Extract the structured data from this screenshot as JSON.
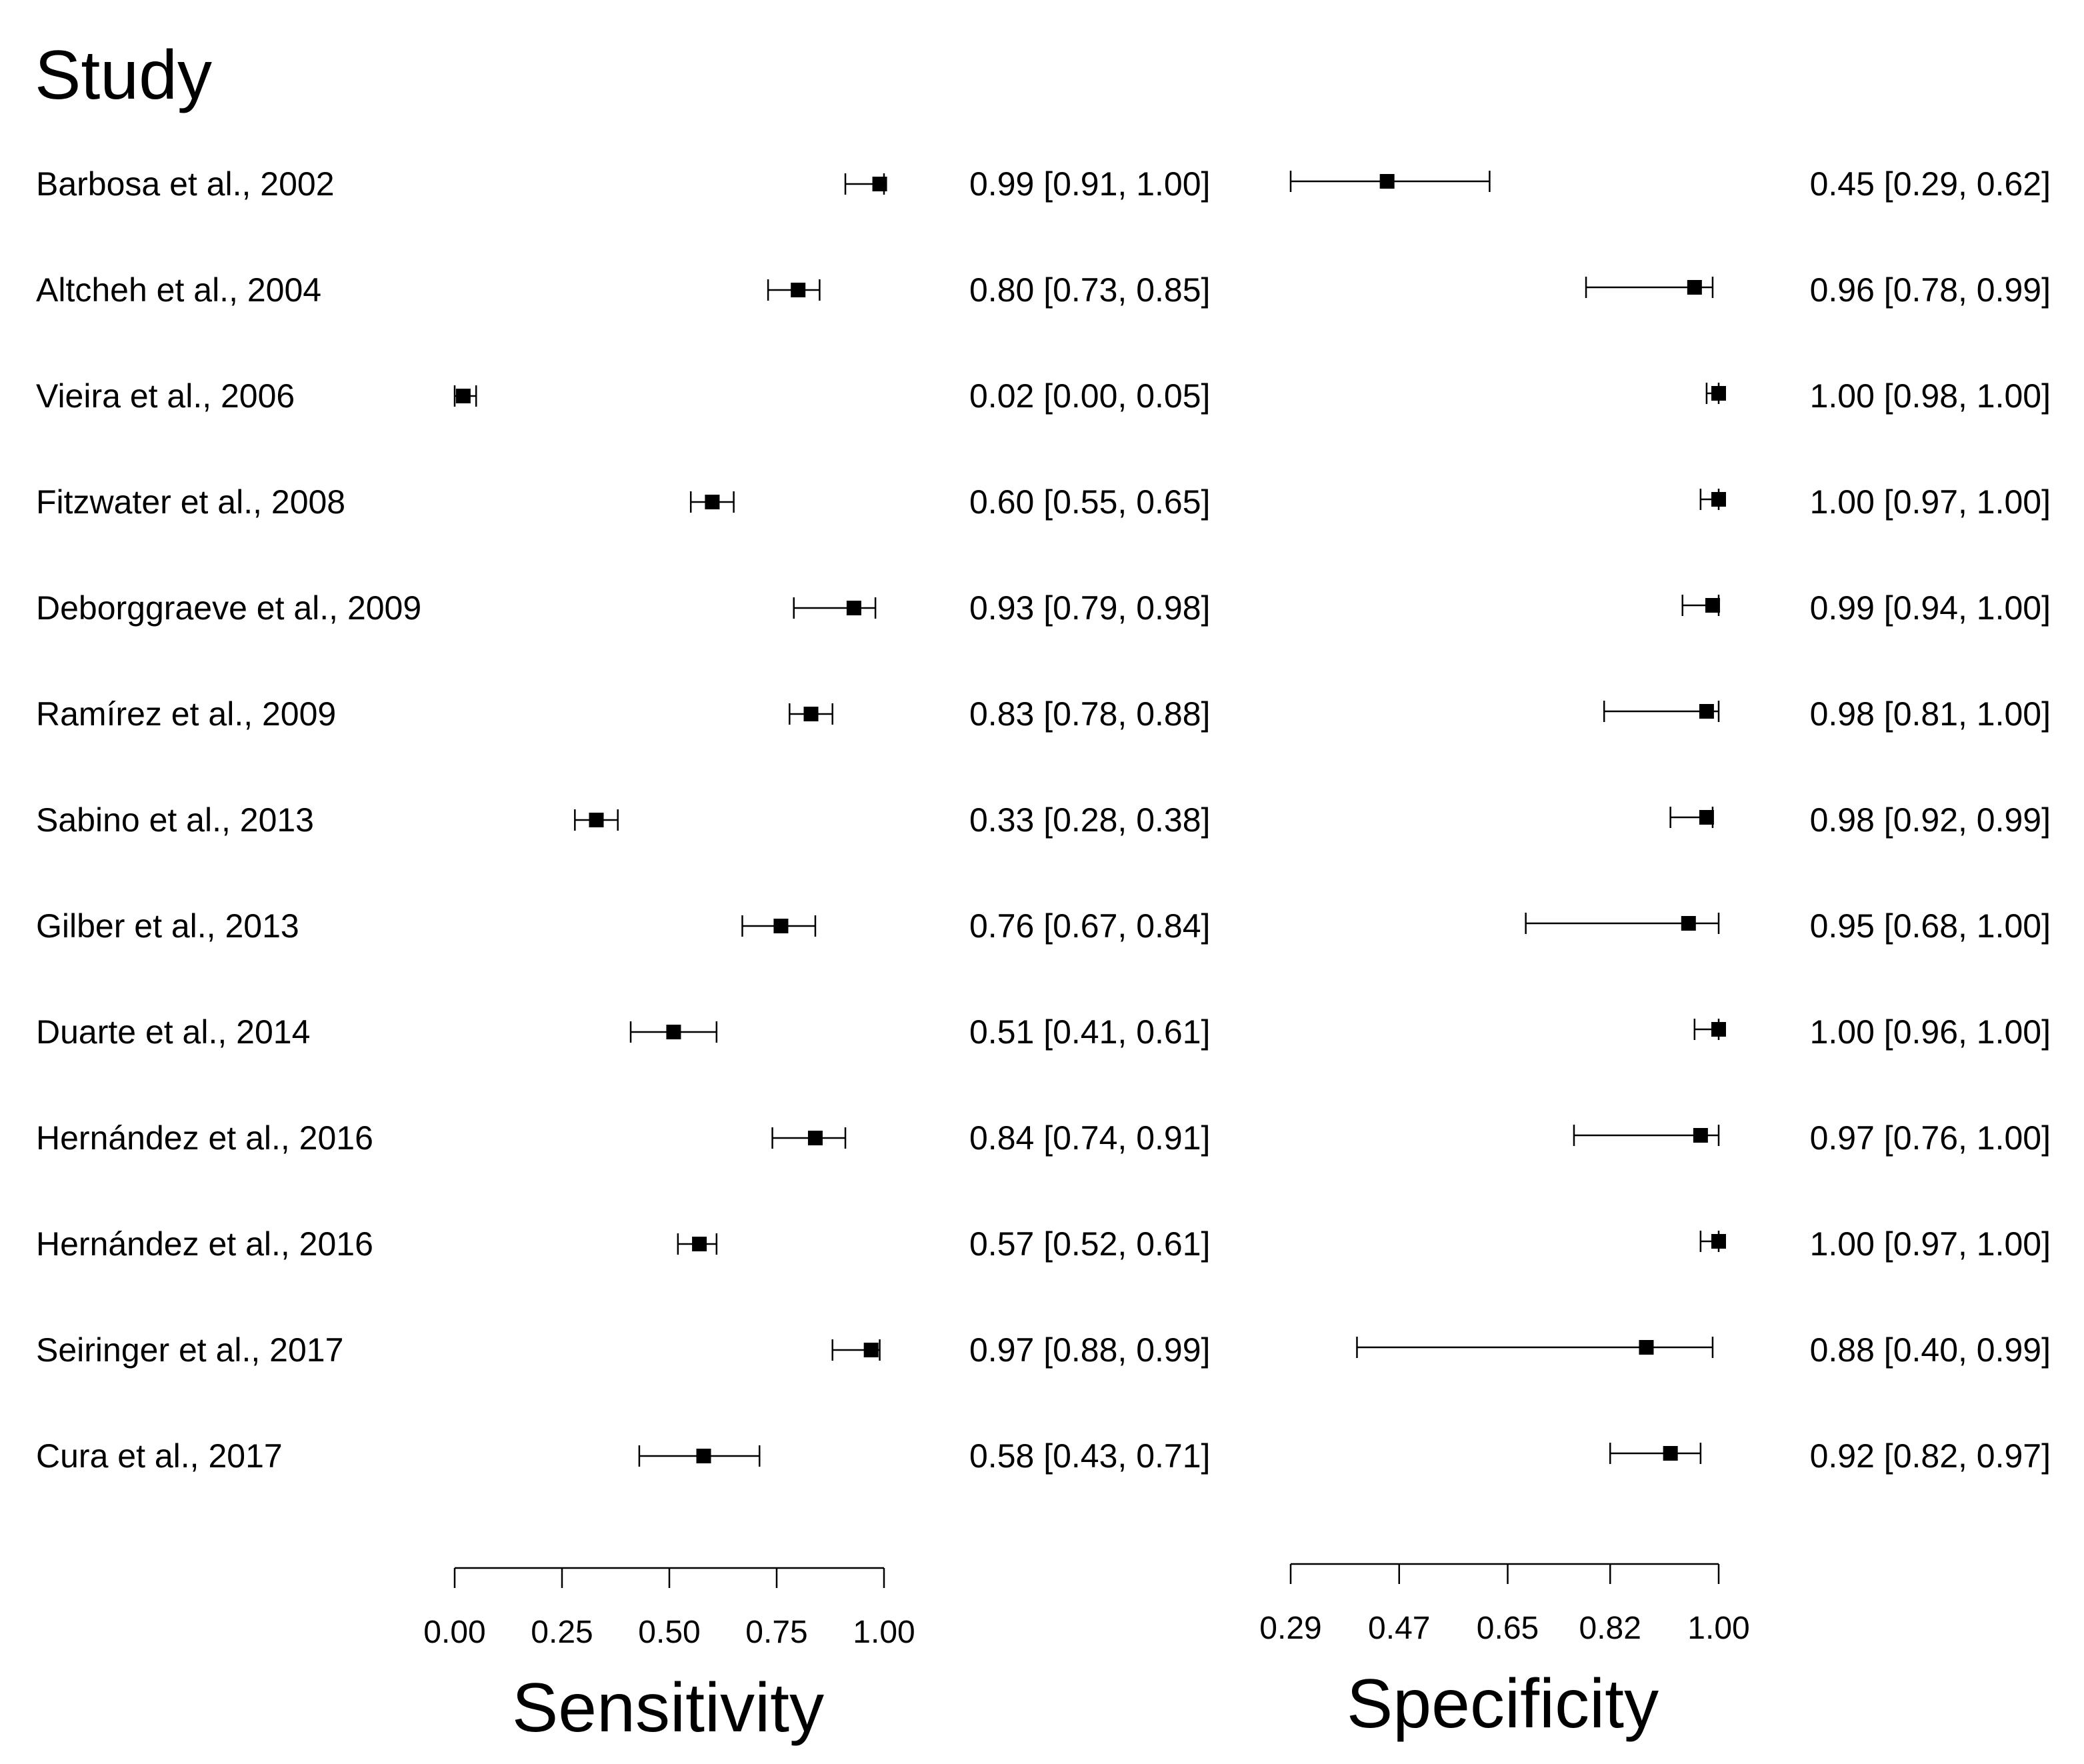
{
  "chart_data": {
    "type": "forest",
    "header": "Study",
    "studies": [
      {
        "name": "Barbosa et al., 2002",
        "sens": 0.99,
        "sens_lo": 0.91,
        "sens_hi": 1.0,
        "sens_text": "0.99 [0.91, 1.00]",
        "spec": 0.45,
        "spec_lo": 0.29,
        "spec_hi": 0.62,
        "spec_text": "0.45 [0.29, 0.62]"
      },
      {
        "name": "Altcheh et al., 2004",
        "sens": 0.8,
        "sens_lo": 0.73,
        "sens_hi": 0.85,
        "sens_text": "0.80 [0.73, 0.85]",
        "spec": 0.96,
        "spec_lo": 0.78,
        "spec_hi": 0.99,
        "spec_text": "0.96 [0.78, 0.99]"
      },
      {
        "name": "Vieira et al., 2006",
        "sens": 0.02,
        "sens_lo": 0.0,
        "sens_hi": 0.05,
        "sens_text": "0.02 [0.00, 0.05]",
        "spec": 1.0,
        "spec_lo": 0.98,
        "spec_hi": 1.0,
        "spec_text": "1.00 [0.98, 1.00]"
      },
      {
        "name": "Fitzwater et al., 2008",
        "sens": 0.6,
        "sens_lo": 0.55,
        "sens_hi": 0.65,
        "sens_text": "0.60 [0.55, 0.65]",
        "spec": 1.0,
        "spec_lo": 0.97,
        "spec_hi": 1.0,
        "spec_text": "1.00 [0.97, 1.00]"
      },
      {
        "name": "Deborggraeve et al., 2009",
        "sens": 0.93,
        "sens_lo": 0.79,
        "sens_hi": 0.98,
        "sens_text": "0.93 [0.79, 0.98]",
        "spec": 0.99,
        "spec_lo": 0.94,
        "spec_hi": 1.0,
        "spec_text": "0.99 [0.94, 1.00]"
      },
      {
        "name": "Ramírez et al., 2009",
        "sens": 0.83,
        "sens_lo": 0.78,
        "sens_hi": 0.88,
        "sens_text": "0.83 [0.78, 0.88]",
        "spec": 0.98,
        "spec_lo": 0.81,
        "spec_hi": 1.0,
        "spec_text": "0.98 [0.81, 1.00]"
      },
      {
        "name": "Sabino et al., 2013",
        "sens": 0.33,
        "sens_lo": 0.28,
        "sens_hi": 0.38,
        "sens_text": "0.33 [0.28, 0.38]",
        "spec": 0.98,
        "spec_lo": 0.92,
        "spec_hi": 0.99,
        "spec_text": "0.98 [0.92, 0.99]"
      },
      {
        "name": "Gilber et al., 2013",
        "sens": 0.76,
        "sens_lo": 0.67,
        "sens_hi": 0.84,
        "sens_text": "0.76 [0.67, 0.84]",
        "spec": 0.95,
        "spec_lo": 0.68,
        "spec_hi": 1.0,
        "spec_text": "0.95 [0.68, 1.00]"
      },
      {
        "name": "Duarte et al., 2014",
        "sens": 0.51,
        "sens_lo": 0.41,
        "sens_hi": 0.61,
        "sens_text": "0.51 [0.41, 0.61]",
        "spec": 1.0,
        "spec_lo": 0.96,
        "spec_hi": 1.0,
        "spec_text": "1.00 [0.96, 1.00]"
      },
      {
        "name": "Hernández et al., 2016",
        "sens": 0.84,
        "sens_lo": 0.74,
        "sens_hi": 0.91,
        "sens_text": "0.84 [0.74, 0.91]",
        "spec": 0.97,
        "spec_lo": 0.76,
        "spec_hi": 1.0,
        "spec_text": "0.97 [0.76, 1.00]"
      },
      {
        "name": "Hernández et al., 2016",
        "sens": 0.57,
        "sens_lo": 0.52,
        "sens_hi": 0.61,
        "sens_text": "0.57 [0.52, 0.61]",
        "spec": 1.0,
        "spec_lo": 0.97,
        "spec_hi": 1.0,
        "spec_text": "1.00 [0.97, 1.00]"
      },
      {
        "name": "Seiringer et al., 2017",
        "sens": 0.97,
        "sens_lo": 0.88,
        "sens_hi": 0.99,
        "sens_text": "0.97 [0.88, 0.99]",
        "spec": 0.88,
        "spec_lo": 0.4,
        "spec_hi": 0.99,
        "spec_text": "0.88 [0.40, 0.99]"
      },
      {
        "name": "Cura et al., 2017",
        "sens": 0.58,
        "sens_lo": 0.43,
        "sens_hi": 0.71,
        "sens_text": "0.58 [0.43, 0.71]",
        "spec": 0.92,
        "spec_lo": 0.82,
        "spec_hi": 0.97,
        "spec_text": "0.92 [0.82, 0.97]"
      }
    ],
    "sensitivity_axis": {
      "title": "Sensitivity",
      "range": [
        0.0,
        1.0
      ],
      "ticks": [
        0.0,
        0.25,
        0.5,
        0.75,
        1.0
      ],
      "tick_labels": [
        "0.00",
        "0.25",
        "0.50",
        "0.75",
        "1.00"
      ]
    },
    "specificity_axis": {
      "title": "Specificity",
      "range": [
        0.29,
        1.0
      ],
      "ticks": [
        0.29,
        0.47,
        0.65,
        0.82,
        1.0
      ],
      "tick_labels": [
        "0.29",
        "0.47",
        "0.65",
        "0.82",
        "1.00"
      ]
    }
  }
}
